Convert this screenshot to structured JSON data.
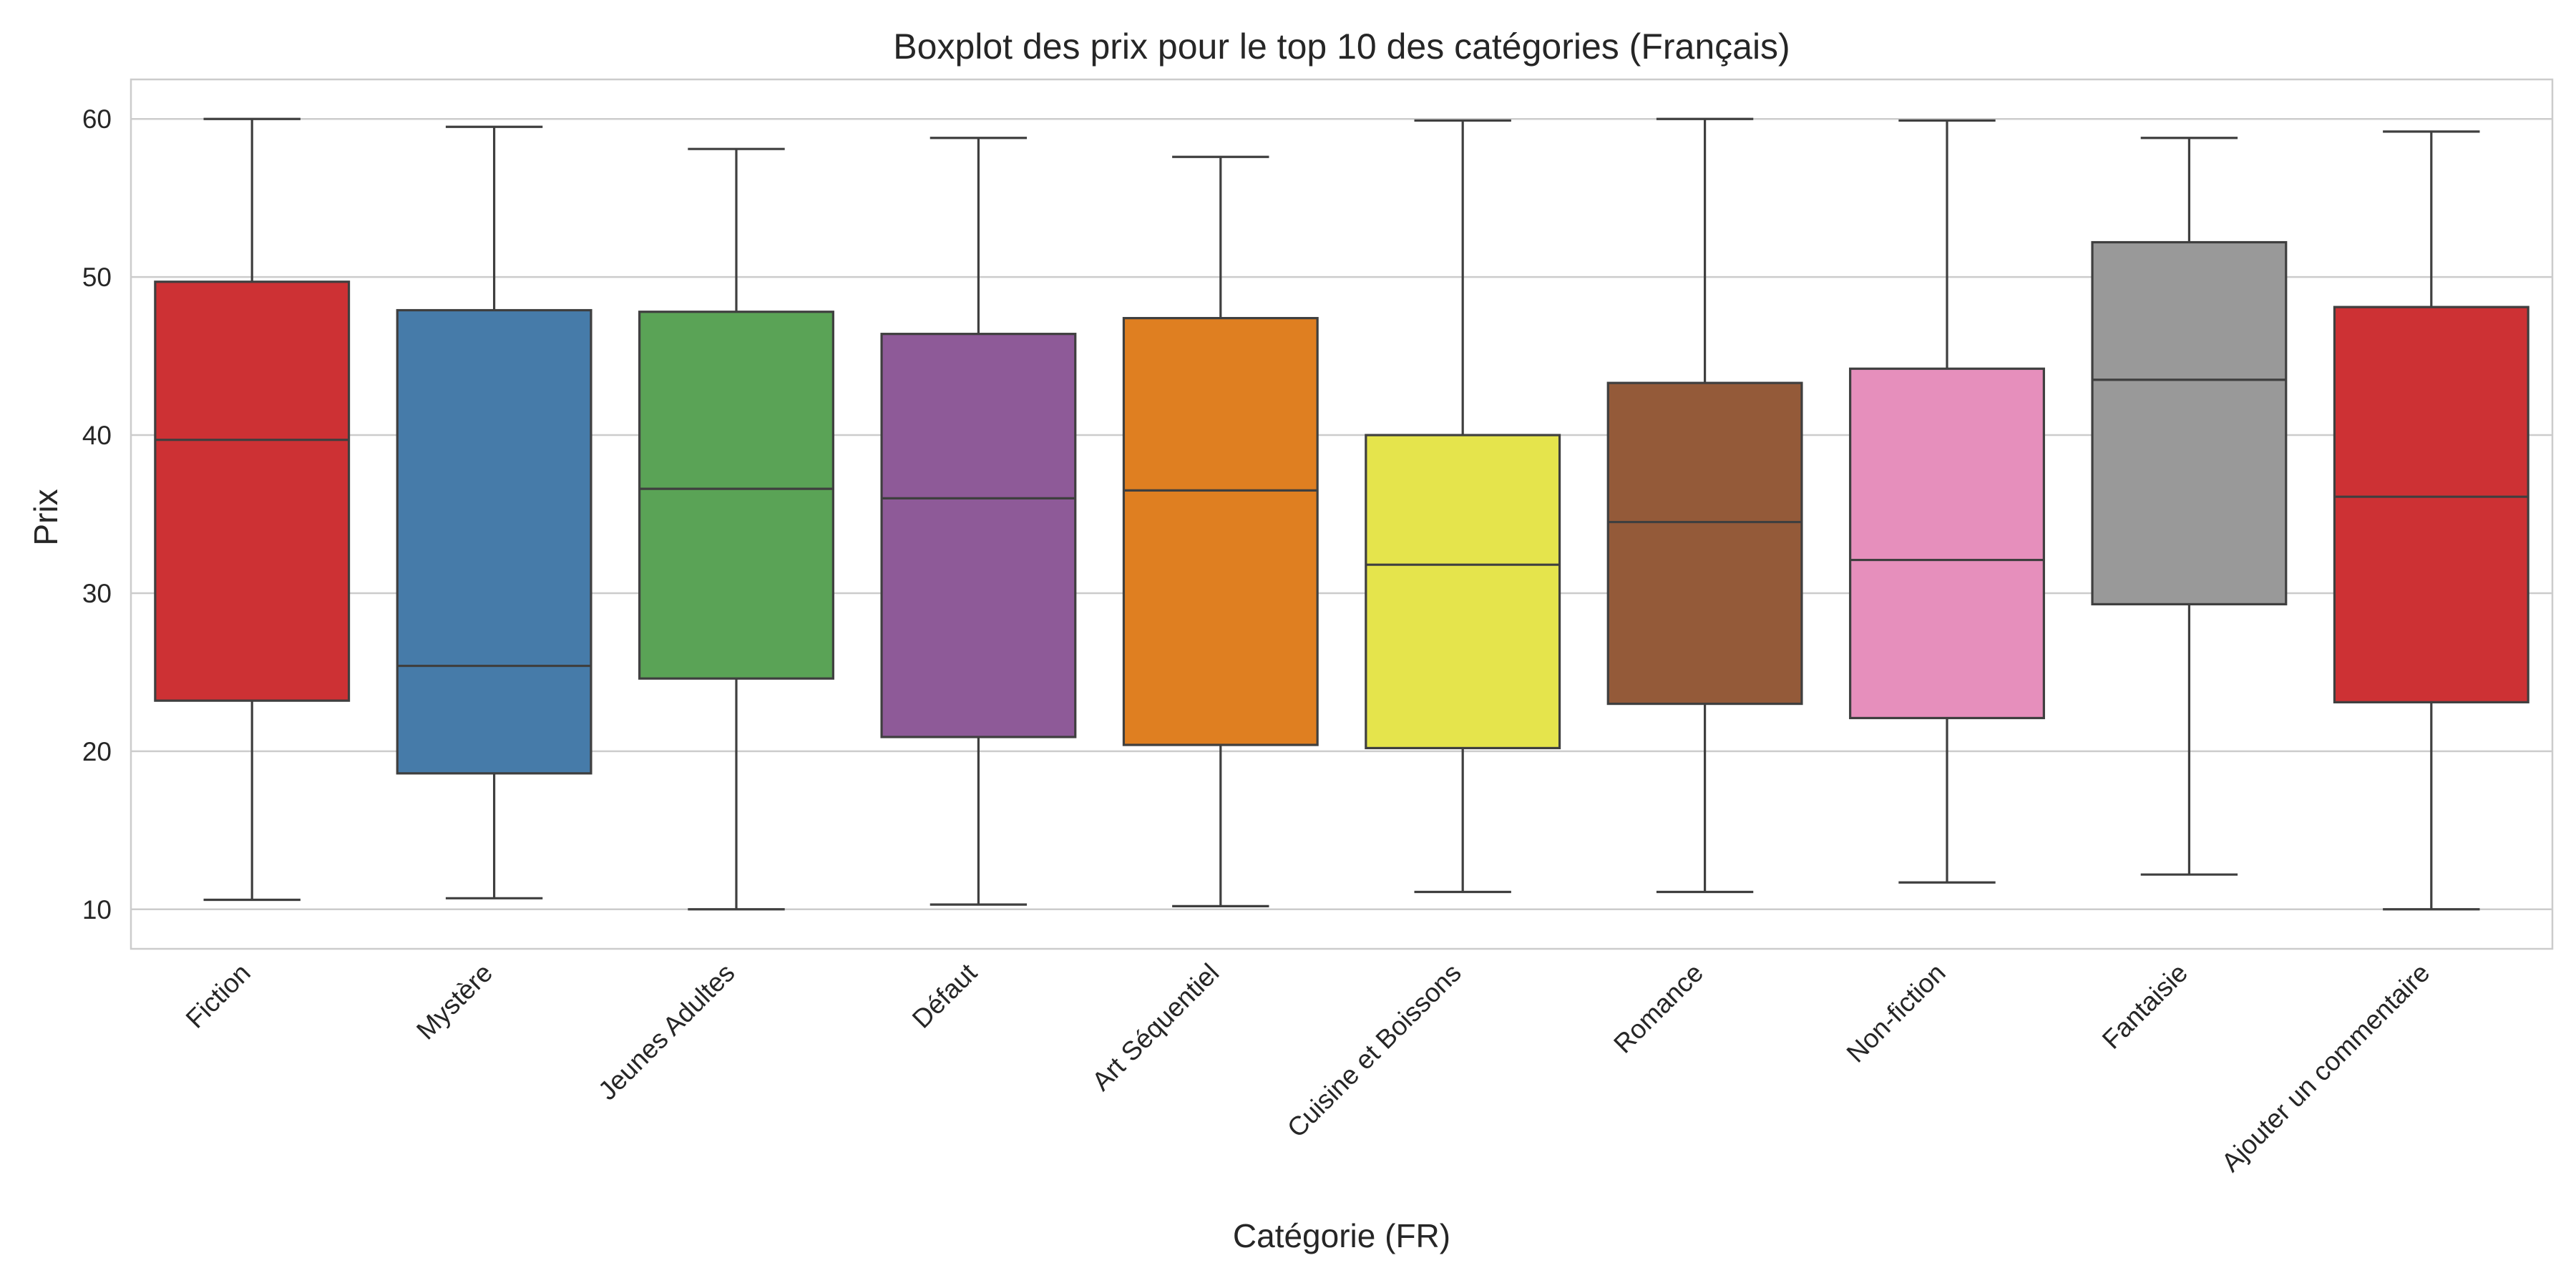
{
  "chart_data": {
    "type": "boxplot",
    "title": "Boxplot des prix pour le top 10 des catégories (Français)",
    "xlabel": "Catégorie (FR)",
    "ylabel": "Prix",
    "ylim": [
      7.5,
      62.5
    ],
    "yticks": [
      10,
      20,
      30,
      40,
      50,
      60
    ],
    "ytick_labels": [
      "10",
      "20",
      "30",
      "40",
      "50",
      "60"
    ],
    "grid": true,
    "categories": [
      "Fiction",
      "Mystère",
      "Jeunes Adultes",
      "Défaut",
      "Art Séquentiel",
      "Cuisine et Boissons",
      "Romance",
      "Non-fiction",
      "Fantaisie",
      "Ajouter un commentaire"
    ],
    "boxes": [
      {
        "category": "Fiction",
        "min": 10.6,
        "q1": 23.2,
        "median": 39.7,
        "q3": 49.7,
        "max": 60.0,
        "color": "#cd3134"
      },
      {
        "category": "Mystère",
        "min": 10.7,
        "q1": 18.6,
        "median": 25.4,
        "q3": 47.9,
        "max": 59.5,
        "color": "#467ba9"
      },
      {
        "category": "Jeunes Adultes",
        "min": 10.0,
        "q1": 24.6,
        "median": 36.6,
        "q3": 47.8,
        "max": 58.1,
        "color": "#5aa356"
      },
      {
        "category": "Défaut",
        "min": 10.3,
        "q1": 20.9,
        "median": 36.0,
        "q3": 46.4,
        "max": 58.8,
        "color": "#8e5a98"
      },
      {
        "category": "Art Séquentiel",
        "min": 10.2,
        "q1": 20.4,
        "median": 36.5,
        "q3": 47.4,
        "max": 57.6,
        "color": "#df7f21"
      },
      {
        "category": "Cuisine et Boissons",
        "min": 11.1,
        "q1": 20.2,
        "median": 31.8,
        "q3": 40.0,
        "max": 59.9,
        "color": "#e5e44c"
      },
      {
        "category": "Romance",
        "min": 11.1,
        "q1": 23.0,
        "median": 34.5,
        "q3": 43.3,
        "max": 60.0,
        "color": "#945a39"
      },
      {
        "category": "Non-fiction",
        "min": 11.7,
        "q1": 22.1,
        "median": 32.1,
        "q3": 44.2,
        "max": 59.9,
        "color": "#e68fbc"
      },
      {
        "category": "Fantaisie",
        "min": 12.2,
        "q1": 29.3,
        "median": 43.5,
        "q3": 52.2,
        "max": 58.8,
        "color": "#999999"
      },
      {
        "category": "Ajouter un commentaire",
        "min": 10.0,
        "q1": 23.1,
        "median": 36.1,
        "q3": 48.1,
        "max": 59.2,
        "color": "#cd3134"
      }
    ]
  }
}
